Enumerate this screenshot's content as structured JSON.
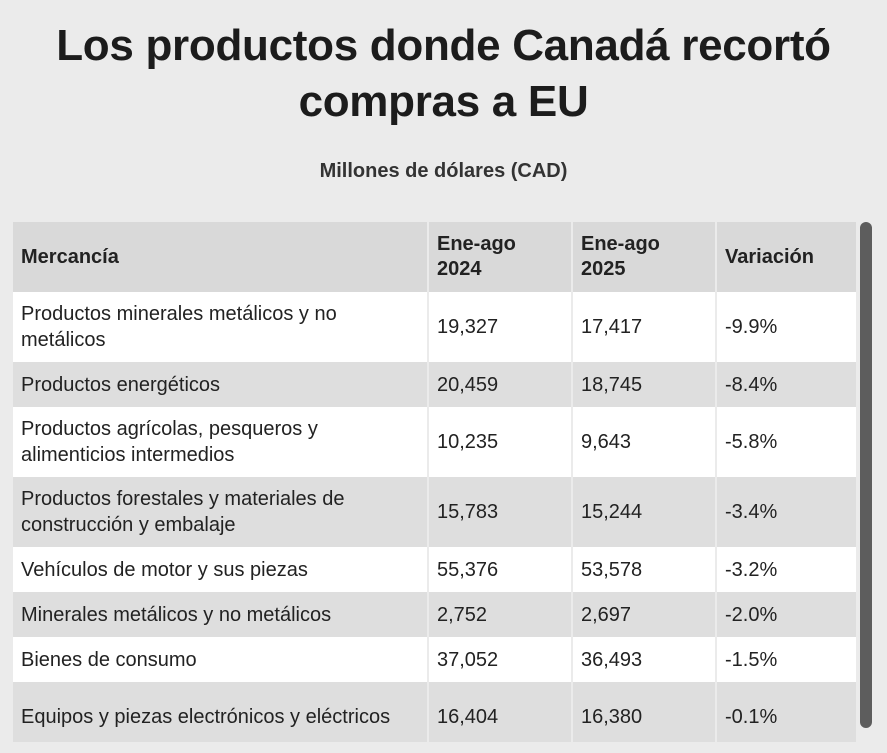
{
  "title": "Los productos donde Canadá recortó compras a EU",
  "subtitle": "Millones de dólares (CAD)",
  "chart_data": {
    "type": "table",
    "columns": [
      "Mercancía",
      "Ene-ago 2024",
      "Ene-ago 2025",
      "Variación"
    ],
    "rows": [
      [
        "Productos minerales metálicos y no metálicos",
        "19,327",
        "17,417",
        "-9.9%"
      ],
      [
        "Productos energéticos",
        "20,459",
        "18,745",
        "-8.4%"
      ],
      [
        "Productos agrícolas, pesqueros y alimenticios intermedios",
        "10,235",
        "9,643",
        "-5.8%"
      ],
      [
        "Productos forestales y materiales de construcción y embalaje",
        "15,783",
        "15,244",
        "-3.4%"
      ],
      [
        "Vehículos de motor y sus piezas",
        "55,376",
        "53,578",
        "-3.2%"
      ],
      [
        "Minerales metálicos y no metálicos",
        "2,752",
        "2,697",
        "-2.0%"
      ],
      [
        "Bienes de consumo",
        "37,052",
        "36,493",
        "-1.5%"
      ],
      [
        "Equipos y piezas electrónicos y eléctricos",
        "16,404",
        "16,380",
        "-0.1%"
      ]
    ]
  }
}
